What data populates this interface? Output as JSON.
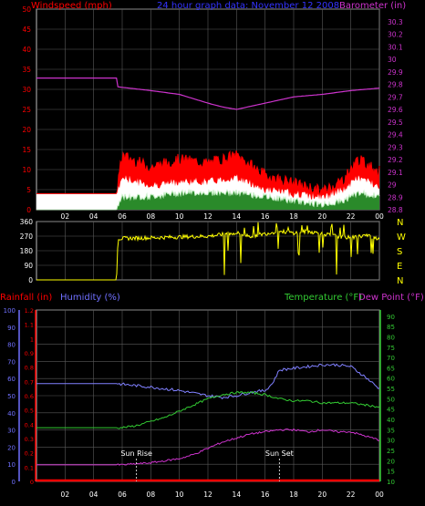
{
  "top_header": {
    "windspeed_label": "Windspeed (mph)",
    "title": "24 hour graph data: November 12 2008",
    "barometer_label": "Barometer (in)"
  },
  "bottom_header": {
    "rainfall_label": "Rainfall (in)",
    "humidity_label": "Humidity (%)",
    "temperature_label": "Temperature (°F)",
    "dewpoint_label": "Dew Point (°F)"
  },
  "compass_labels": [
    "N",
    "W",
    "S",
    "E",
    "N"
  ],
  "sun_labels": {
    "rise": "Sun Rise",
    "set": "Sun Set"
  },
  "colors": {
    "windspeed": "#ff0000",
    "windgust_bg": "#ffffff",
    "windavg": "#c8f0c8",
    "barometer": "#cc33cc",
    "direction": "#ffff00",
    "rainfall": "#ff0000",
    "humidity": "#8080ff",
    "temperature": "#33cc33",
    "dewpoint": "#cc33cc",
    "axis": "#ffffff",
    "grid": "#5a5a5a",
    "left_axis_red": "#ff0000",
    "left_axis_blue": "#7070ff",
    "sun_marker": "#ffffff"
  },
  "chart_data": [
    {
      "type": "line",
      "panel": "wind-barometer",
      "x_tick_labels": [
        "02",
        "04",
        "06",
        "08",
        "10",
        "12",
        "14",
        "16",
        "18",
        "20",
        "22",
        "00"
      ],
      "xlim": [
        0,
        24
      ],
      "left_axis": {
        "label": "Windspeed (mph)",
        "ylim": [
          0,
          50
        ],
        "ticks": [
          0,
          5,
          10,
          15,
          20,
          25,
          30,
          35,
          40,
          45,
          50
        ]
      },
      "right_axis": {
        "label": "Barometer (in)",
        "ylim": [
          28.8,
          30.4
        ],
        "ticks": [
          "28.8",
          "28.9",
          "29",
          "29.1",
          "29.2",
          "29.3",
          "29.4",
          "29.5",
          "29.6",
          "29.7",
          "29.8",
          "29.9",
          "30",
          "30.1",
          "30.2",
          "30.3"
        ]
      },
      "series": [
        {
          "name": "Barometer (in)",
          "axis": "right",
          "x": [
            0,
            5.6,
            5.7,
            8,
            10,
            12,
            13,
            14,
            16,
            18,
            20,
            22,
            24
          ],
          "y": [
            29.85,
            29.85,
            29.78,
            29.75,
            29.72,
            29.65,
            29.62,
            29.6,
            29.65,
            29.7,
            29.72,
            29.75,
            29.77
          ]
        },
        {
          "name": "Windspeed (mph)",
          "axis": "left",
          "x": [
            0,
            5.6,
            6,
            8,
            10,
            12,
            14,
            16,
            18,
            20,
            21.5,
            22.5,
            24
          ],
          "y": [
            4,
            4,
            8,
            6,
            7,
            7,
            8,
            5,
            4,
            3,
            5,
            8,
            6
          ]
        },
        {
          "name": "Wind gust",
          "axis": "left",
          "x": [
            0,
            5.6,
            6,
            8,
            10,
            12,
            14,
            16,
            18,
            20,
            21.5,
            22.5,
            24
          ],
          "y": [
            4,
            4,
            13,
            10,
            12,
            11,
            13,
            8,
            6,
            4,
            7,
            12,
            9
          ]
        },
        {
          "name": "Wind average",
          "axis": "left",
          "x": [
            0,
            5.6,
            6,
            8,
            10,
            12,
            14,
            16,
            18,
            20,
            21.5,
            22.5,
            24
          ],
          "y": [
            0,
            0,
            3,
            3,
            4,
            4,
            4,
            3,
            2,
            1,
            2,
            4,
            3
          ]
        }
      ]
    },
    {
      "type": "scatter",
      "panel": "wind-direction",
      "x_tick_labels": [
        "02",
        "04",
        "06",
        "08",
        "10",
        "12",
        "14",
        "16",
        "18",
        "20",
        "22",
        "00"
      ],
      "xlim": [
        0,
        24
      ],
      "ylim": [
        0,
        360
      ],
      "y_ticks": [
        0,
        90,
        180,
        270,
        360
      ],
      "series": [
        {
          "name": "Wind direction",
          "x": [
            0,
            5.6,
            5.7,
            8,
            10,
            12,
            13,
            14,
            15,
            16,
            17,
            18,
            19,
            20,
            21,
            22,
            23,
            24
          ],
          "y": [
            0,
            0,
            255,
            260,
            265,
            270,
            280,
            290,
            270,
            285,
            300,
            290,
            300,
            285,
            270,
            260,
            275,
            255
          ]
        }
      ]
    },
    {
      "type": "line",
      "panel": "rain-humidity-temperature",
      "x_tick_labels": [
        "02",
        "04",
        "06",
        "08",
        "10",
        "12",
        "14",
        "16",
        "18",
        "20",
        "22",
        "00"
      ],
      "xlim": [
        0,
        24
      ],
      "rain_axis": {
        "label": "Rainfall (in)",
        "ylim": [
          0,
          1.2
        ],
        "ticks": [
          "0",
          "0.1",
          "0.2",
          "0.3",
          "0.4",
          "0.5",
          "0.6",
          "0.7",
          "0.8",
          "0.9",
          "1",
          "1.1",
          "1.2"
        ]
      },
      "humidity_axis": {
        "label": "Humidity (%)",
        "ylim": [
          0,
          100
        ],
        "ticks": [
          0,
          10,
          20,
          30,
          40,
          50,
          60,
          70,
          80,
          90,
          100
        ]
      },
      "temp_axis": {
        "label": "Temperature (°F)",
        "ylim": [
          10,
          93
        ],
        "ticks": [
          10,
          15,
          20,
          25,
          30,
          35,
          40,
          45,
          50,
          55,
          60,
          65,
          70,
          75,
          80,
          85,
          90
        ]
      },
      "sun_rise_x": 7.0,
      "sun_set_x": 17.0,
      "series": [
        {
          "name": "Rainfall (in)",
          "axis": "rain",
          "x": [
            0,
            24
          ],
          "y": [
            0,
            0
          ]
        },
        {
          "name": "Humidity (%)",
          "axis": "humidity",
          "x": [
            0,
            5.6,
            8,
            10,
            12,
            13,
            14,
            15,
            16,
            16.5,
            17,
            18,
            19,
            20,
            21,
            22,
            23,
            24
          ],
          "y": [
            57,
            57,
            55,
            53,
            50,
            49,
            50,
            52,
            53,
            57,
            65,
            66,
            67,
            68,
            68,
            67,
            61,
            54
          ]
        },
        {
          "name": "Temperature (°F)",
          "axis": "temp",
          "x": [
            0,
            5.6,
            6,
            7,
            8,
            9,
            10,
            11,
            12,
            13,
            14,
            15,
            16,
            17,
            18,
            19,
            20,
            21,
            22,
            23,
            24
          ],
          "y": [
            36,
            36,
            36,
            37,
            39,
            41,
            44,
            47,
            50,
            52,
            53,
            53,
            52,
            50,
            49,
            49,
            48,
            48,
            48,
            47,
            46
          ]
        },
        {
          "name": "Dew Point (°F)",
          "axis": "temp",
          "x": [
            0,
            5.6,
            6,
            7,
            8,
            9,
            10,
            11,
            12,
            13,
            14,
            15,
            16,
            17,
            18,
            19,
            20,
            21,
            22,
            23,
            24
          ],
          "y": [
            18,
            18,
            18,
            18.5,
            19,
            20,
            21,
            23,
            26,
            29,
            31,
            33,
            34,
            35,
            35,
            34,
            35,
            34,
            34,
            32,
            30
          ]
        }
      ]
    }
  ]
}
